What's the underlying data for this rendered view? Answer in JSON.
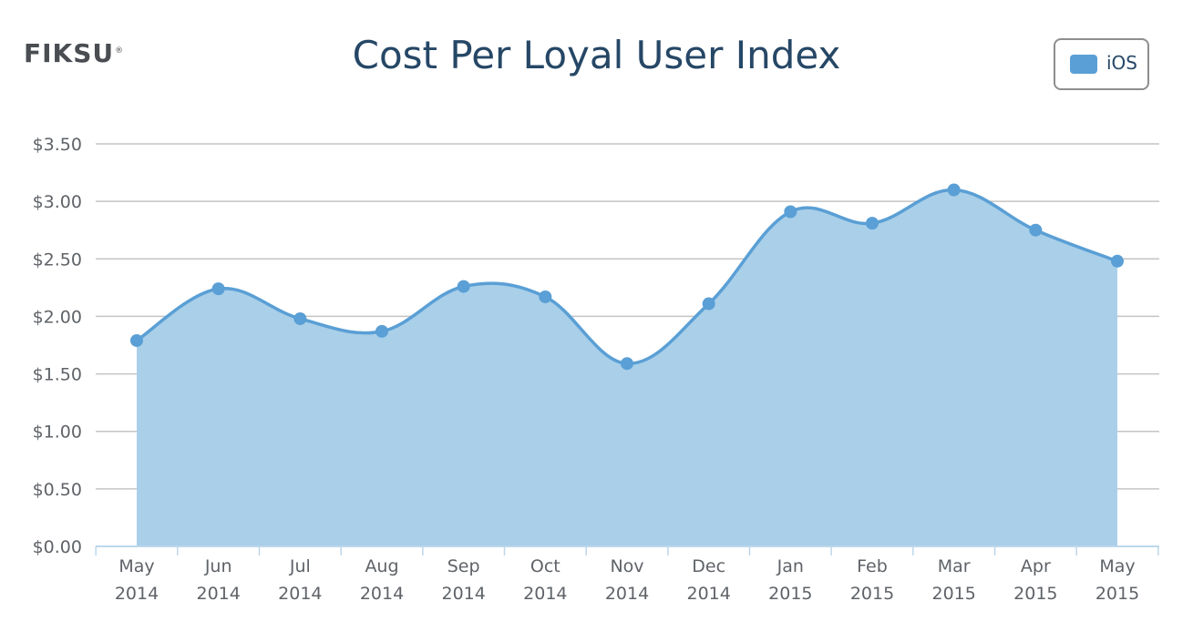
{
  "brand": {
    "logo_text": "FIKSU",
    "logo_mark": "®"
  },
  "colors": {
    "title": "#264766",
    "series_line": "#5a9fd5",
    "series_fill": "#a9cfe9",
    "grid": "#c4c4c4",
    "axis": "#bcd7ea",
    "tick_text": "#5f6368",
    "legend_border": "#8e8e8e"
  },
  "legend": {
    "items": [
      {
        "label": "iOS",
        "color": "#5a9fd5"
      }
    ]
  },
  "chart_data": {
    "type": "area",
    "title": "Cost Per Loyal User Index",
    "xlabel": "",
    "ylabel": "",
    "categories": [
      [
        "May",
        "2014"
      ],
      [
        "Jun",
        "2014"
      ],
      [
        "Jul",
        "2014"
      ],
      [
        "Aug",
        "2014"
      ],
      [
        "Sep",
        "2014"
      ],
      [
        "Oct",
        "2014"
      ],
      [
        "Nov",
        "2014"
      ],
      [
        "Dec",
        "2014"
      ],
      [
        "Jan",
        "2015"
      ],
      [
        "Feb",
        "2015"
      ],
      [
        "Mar",
        "2015"
      ],
      [
        "Apr",
        "2015"
      ],
      [
        "May",
        "2015"
      ]
    ],
    "series": [
      {
        "name": "iOS",
        "values": [
          1.79,
          2.24,
          1.98,
          1.87,
          2.26,
          2.17,
          1.59,
          2.11,
          2.91,
          2.81,
          3.1,
          2.75,
          2.48
        ]
      }
    ],
    "ylim": [
      0,
      3.5
    ],
    "yticks": [
      "$0.00",
      "$0.50",
      "$1.00",
      "$1.50",
      "$2.00",
      "$2.50",
      "$3.00",
      "$3.50"
    ],
    "ytick_values": [
      0,
      0.5,
      1.0,
      1.5,
      2.0,
      2.5,
      3.0,
      3.5
    ],
    "grid": true,
    "smooth": true,
    "legend_position": "top-right"
  }
}
